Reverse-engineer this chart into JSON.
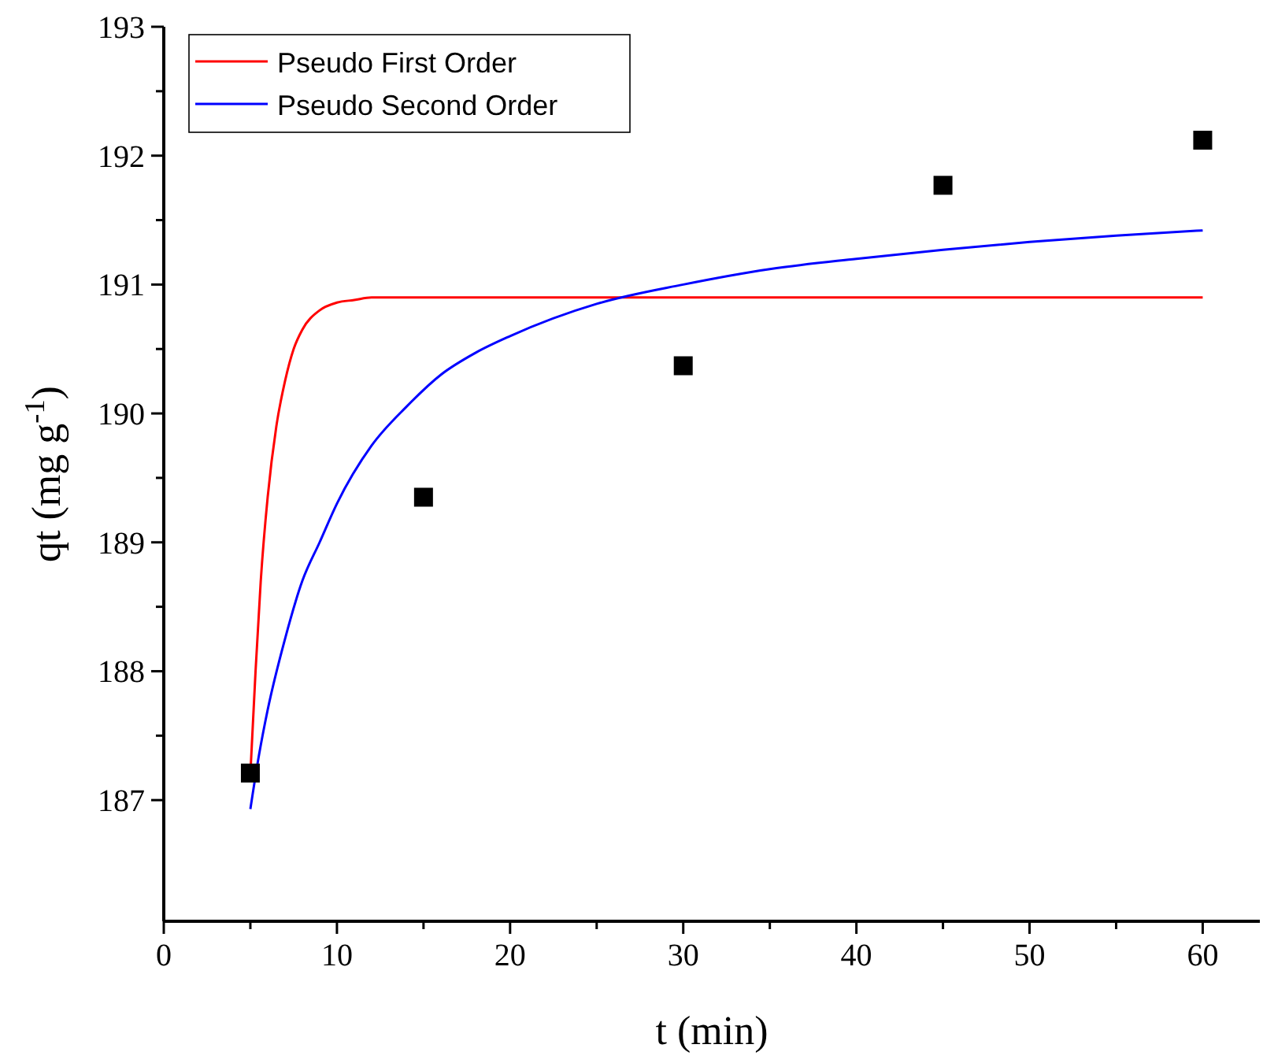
{
  "chart_data": {
    "type": "line",
    "xlabel": "t (min)",
    "ylabel": "qt (mg g$^{-1}$)",
    "xlim": [
      0,
      63.3
    ],
    "ylim": [
      186.06,
      193
    ],
    "xticks": [
      0,
      {
        "value": 5,
        "label": null
      },
      10,
      {
        "value": 15,
        "label": null
      },
      20,
      {
        "value": 25,
        "label": null
      },
      30,
      {
        "value": 35,
        "label": null
      },
      40,
      {
        "value": 45,
        "label": null
      },
      50,
      {
        "value": 55,
        "label": null
      },
      60
    ],
    "yticks": [
      187,
      {
        "value": 187.5,
        "label": null
      },
      188,
      {
        "value": 188.5,
        "label": null
      },
      189,
      {
        "value": 189.5,
        "label": null
      },
      190,
      {
        "value": 190.5,
        "label": null
      },
      191,
      {
        "value": 191.5,
        "label": null
      },
      192,
      {
        "value": 192.5,
        "label": null
      },
      193
    ],
    "grid": false,
    "legend": "top left",
    "line_style": "solid",
    "series": [
      {
        "name": "Pseudo First Order",
        "color": "#ff0000",
        "x": [
          5,
          5.3,
          5.6,
          6,
          6.5,
          7,
          7.5,
          8,
          9,
          10,
          11,
          12,
          15,
          20,
          30,
          40,
          50,
          60
        ],
        "values": [
          187.2,
          188.0,
          188.7,
          189.35,
          189.9,
          190.25,
          190.5,
          190.65,
          190.8,
          190.86,
          190.88,
          190.9,
          190.9,
          190.9,
          190.9,
          190.9,
          190.9,
          190.9
        ]
      },
      {
        "name": "Pseudo Second Order",
        "color": "#0000ff",
        "x": [
          5,
          5.5,
          6,
          7,
          8,
          9,
          10,
          12,
          14,
          16,
          18,
          20,
          25,
          30,
          35,
          40,
          45,
          50,
          55,
          60
        ],
        "values": [
          186.93,
          187.35,
          187.7,
          188.25,
          188.7,
          189.0,
          189.3,
          189.75,
          190.05,
          190.3,
          190.47,
          190.6,
          190.85,
          191.0,
          191.12,
          191.2,
          191.27,
          191.33,
          191.38,
          191.42
        ]
      },
      {
        "type": "scatter",
        "marker": "square",
        "color": "#000000",
        "x": [
          5,
          15,
          30,
          45,
          60
        ],
        "values": [
          187.21,
          189.35,
          190.37,
          191.77,
          192.12
        ]
      }
    ]
  }
}
